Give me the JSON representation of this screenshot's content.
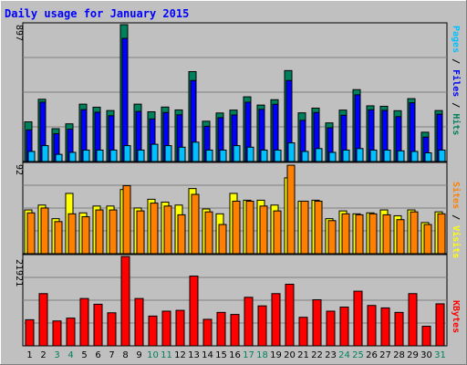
{
  "chart_data": [
    {
      "type": "bar",
      "title": "Daily usage for January 2015",
      "categories": [
        "1",
        "2",
        "3",
        "4",
        "5",
        "6",
        "7",
        "8",
        "9",
        "10",
        "11",
        "12",
        "13",
        "14",
        "15",
        "16",
        "17",
        "18",
        "19",
        "20",
        "21",
        "22",
        "23",
        "24",
        "25",
        "26",
        "27",
        "28",
        "29",
        "30",
        "31"
      ],
      "weekend_days": [
        "3",
        "4",
        "10",
        "11",
        "17",
        "18",
        "24",
        "25",
        "31"
      ],
      "y_max_label": "897",
      "ylim": [
        0,
        897
      ],
      "grid": true,
      "series": [
        {
          "name": "Hits",
          "color": "#00805c",
          "values": [
            260,
            408,
            215,
            247,
            376,
            356,
            334,
            897,
            376,
            326,
            357,
            338,
            589,
            264,
            318,
            337,
            424,
            370,
            405,
            596,
            319,
            350,
            253,
            337,
            471,
            365,
            362,
            333,
            412,
            192,
            334
          ]
        },
        {
          "name": "Files",
          "color": "#0000ff",
          "values": [
            207,
            389,
            182,
            212,
            340,
            323,
            300,
            807,
            328,
            279,
            321,
            306,
            531,
            231,
            287,
            305,
            389,
            342,
            375,
            531,
            270,
            321,
            221,
            303,
            437,
            339,
            335,
            294,
            385,
            160,
            310
          ]
        },
        {
          "name": "Pages",
          "color": "#00c0ff",
          "values": [
            66,
            104,
            47,
            60,
            75,
            75,
            75,
            104,
            75,
            113,
            104,
            94,
            127,
            75,
            75,
            104,
            94,
            75,
            75,
            122,
            66,
            85,
            60,
            75,
            85,
            75,
            75,
            70,
            66,
            57,
            75
          ]
        }
      ]
    },
    {
      "type": "bar",
      "categories": [
        "1",
        "2",
        "3",
        "4",
        "5",
        "6",
        "7",
        "8",
        "9",
        "10",
        "11",
        "12",
        "13",
        "14",
        "15",
        "16",
        "17",
        "18",
        "19",
        "20",
        "21",
        "22",
        "23",
        "24",
        "25",
        "26",
        "27",
        "28",
        "29",
        "30",
        "31"
      ],
      "y_max_label": "92",
      "ylim": [
        0,
        92
      ],
      "grid": true,
      "series": [
        {
          "name": "Visits",
          "color": "#ffff00",
          "values": [
            45,
            50,
            36,
            62,
            42,
            49,
            49,
            66,
            47,
            56,
            53,
            50,
            67,
            46,
            41,
            62,
            55,
            55,
            50,
            78,
            54,
            55,
            36,
            44,
            41,
            42,
            45,
            39,
            45,
            32,
            43
          ]
        },
        {
          "name": "Sites",
          "color": "#ff8000",
          "values": [
            42,
            47,
            33,
            41,
            38,
            45,
            45,
            70,
            44,
            52,
            49,
            40,
            61,
            43,
            30,
            54,
            54,
            49,
            44,
            91,
            54,
            54,
            34,
            41,
            40,
            41,
            40,
            35,
            43,
            30,
            41
          ]
        }
      ]
    },
    {
      "type": "bar",
      "categories": [
        "1",
        "2",
        "3",
        "4",
        "5",
        "6",
        "7",
        "8",
        "9",
        "10",
        "11",
        "12",
        "13",
        "14",
        "15",
        "16",
        "17",
        "18",
        "19",
        "20",
        "21",
        "22",
        "23",
        "24",
        "25",
        "26",
        "27",
        "28",
        "29",
        "30",
        "31"
      ],
      "y_max_label": "21921",
      "ylim": [
        0,
        21921
      ],
      "grid": true,
      "series": [
        {
          "name": "KBytes",
          "color": "#ff0000",
          "values": [
            6400,
            12800,
            6100,
            6800,
            11600,
            10200,
            8100,
            21900,
            11600,
            7300,
            8500,
            8700,
            17100,
            6500,
            8200,
            7700,
            11900,
            9800,
            12800,
            15100,
            7000,
            11300,
            8500,
            9500,
            13400,
            9900,
            9300,
            8200,
            12800,
            4800,
            10300
          ]
        }
      ]
    }
  ]
}
